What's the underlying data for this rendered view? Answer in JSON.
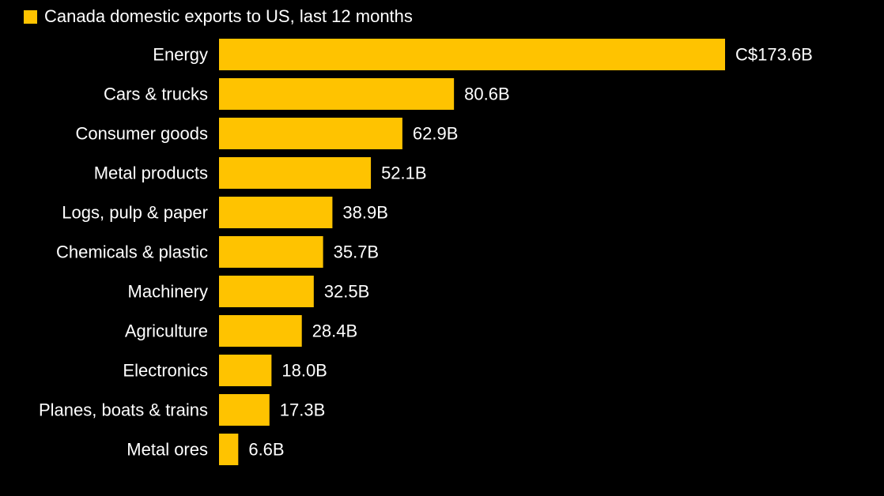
{
  "chart_data": {
    "type": "bar",
    "orientation": "horizontal",
    "legend": {
      "label": "Canada domestic exports to US, last 12 months",
      "color": "#FFC300",
      "placement": "top-left"
    },
    "bar_color": "#FFC300",
    "background_color": "#000000",
    "text_color": "#FFFFFF",
    "categories": [
      "Energy",
      "Cars & trucks",
      "Consumer goods",
      "Metal products",
      "Logs, pulp & paper",
      "Chemicals & plastic",
      "Machinery",
      "Agriculture",
      "Electronics",
      "Planes, boats & trains",
      "Metal ores"
    ],
    "values": [
      173.6,
      80.6,
      62.9,
      52.1,
      38.9,
      35.7,
      32.5,
      28.4,
      18.0,
      17.3,
      6.6
    ],
    "value_labels": [
      "C$173.6B",
      "80.6B",
      "62.9B",
      "52.1B",
      "38.9B",
      "35.7B",
      "32.5B",
      "28.4B",
      "18.0B",
      "17.3B",
      "6.6B"
    ],
    "unit": "C$ billions",
    "xlim": [
      0,
      173.6
    ],
    "grid": false
  }
}
